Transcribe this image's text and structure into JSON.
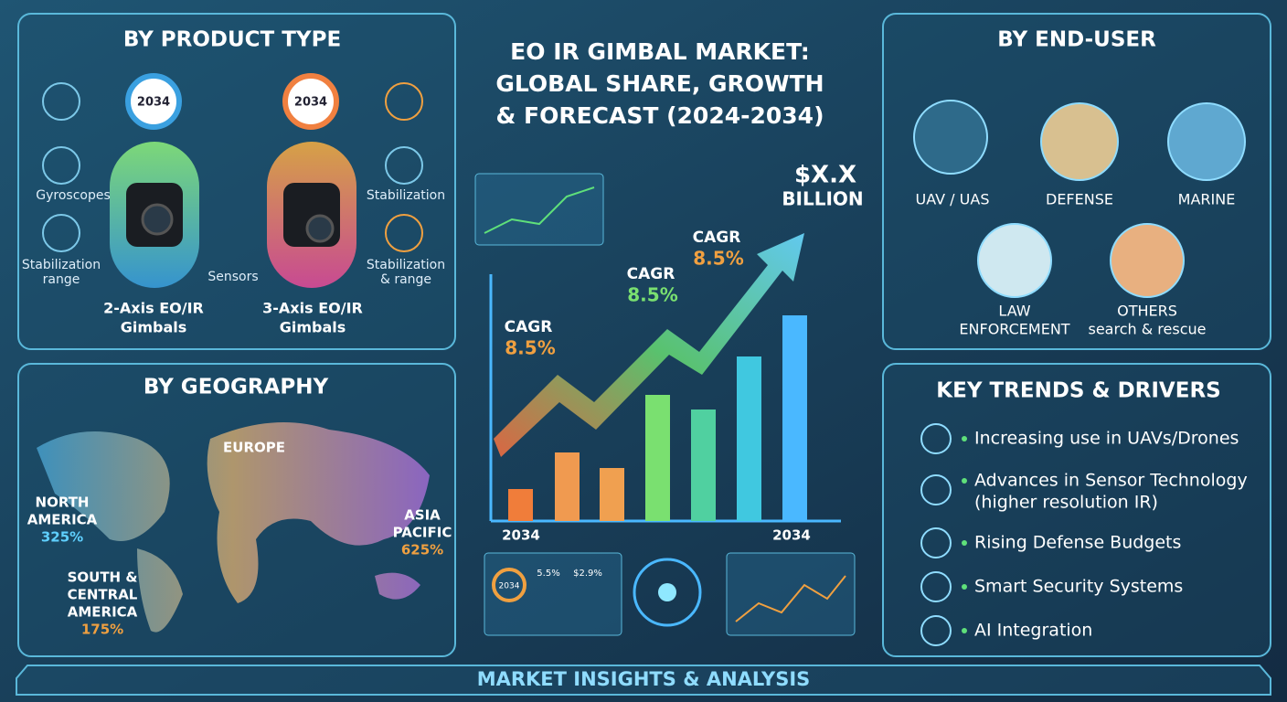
{
  "title": {
    "lines": [
      "EO IR GIMBAL MARKET:",
      "GLOBAL SHARE, GROWTH",
      "& FORECAST (2024-2034)"
    ]
  },
  "product_type": {
    "heading": "BY PRODUCT TYPE",
    "rings": [
      "2034",
      "2034"
    ],
    "features": [
      [
        "Gyroscopes"
      ],
      [
        "Stabilization",
        "range"
      ],
      [
        "Sensors"
      ],
      [
        "Stabilization"
      ],
      [
        "Stabilization",
        "& range"
      ]
    ],
    "products": [
      [
        "2-Axis EO/IR",
        "Gimbals"
      ],
      [
        "3-Axis EO/IR",
        "Gimbals"
      ]
    ]
  },
  "geography": {
    "heading": "BY GEOGRAPHY",
    "regions": [
      {
        "name": [
          "NORTH",
          "AMERICA"
        ],
        "share": "325%"
      },
      {
        "name": [
          "EUROPE"
        ]
      },
      {
        "name": [
          "ASIA",
          "PACIFIC"
        ],
        "share": "625%"
      },
      {
        "name": [
          "SOUTH &",
          "CENTRAL",
          "AMERICA"
        ],
        "share": "175%"
      }
    ]
  },
  "forecast": {
    "cagr": [
      {
        "label": "CAGR",
        "value": "8.5%"
      },
      {
        "label": "CAGR",
        "value": "8.5%"
      },
      {
        "label": "CAGR",
        "value": "8.5%"
      }
    ],
    "market_size": [
      "$X.X",
      "BILLION"
    ],
    "axis": [
      "2034",
      "2034"
    ],
    "dashboard": [
      "2034",
      "5.5%",
      "$2.9%"
    ]
  },
  "end_user": {
    "heading": "BY END-USER",
    "segments": [
      [
        "UAV / UAS"
      ],
      [
        "DEFENSE"
      ],
      [
        "MARINE"
      ],
      [
        "LAW",
        "ENFORCEMENT"
      ],
      [
        "OTHERS",
        "search & rescue"
      ]
    ]
  },
  "trends": {
    "heading": "KEY TRENDS & DRIVERS",
    "items": [
      [
        "Increasing use in UAVs/Drones"
      ],
      [
        "Advances in Sensor Technology",
        "(higher resolution IR)"
      ],
      [
        "Rising Defense Budgets"
      ],
      [
        "Smart Security Systems"
      ],
      [
        "AI Integration"
      ]
    ]
  },
  "footer": "MARKET INSIGHTS & ANALYSIS"
}
